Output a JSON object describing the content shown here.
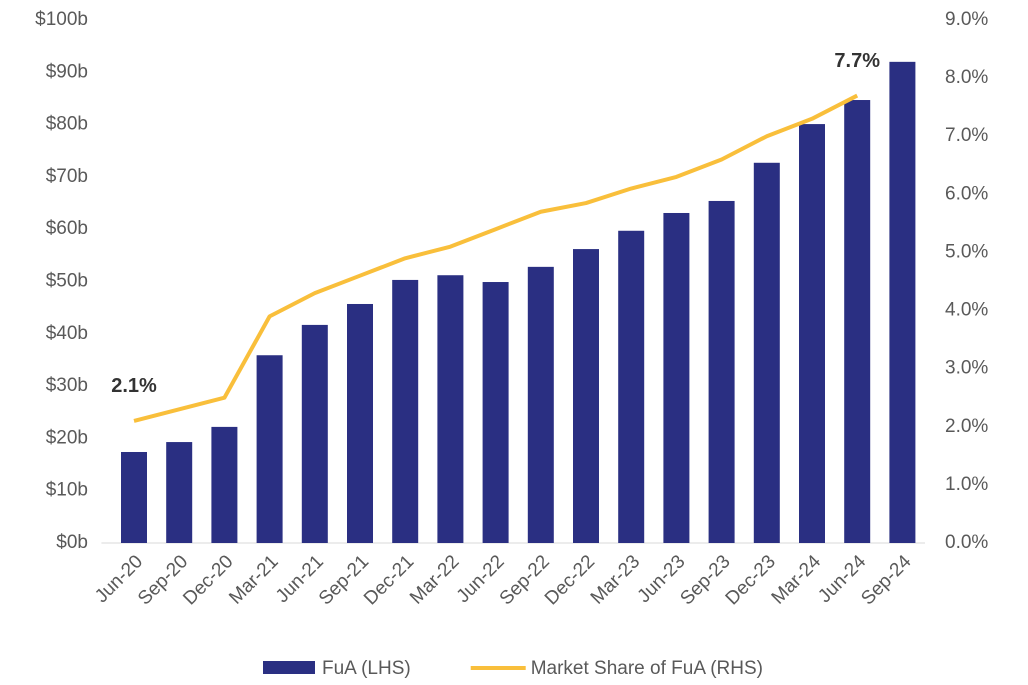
{
  "chart_data": {
    "type": "bar",
    "categories": [
      "Jun-20",
      "Sep-20",
      "Dec-20",
      "Mar-21",
      "Jun-21",
      "Sep-21",
      "Dec-21",
      "Mar-22",
      "Jun-22",
      "Sep-22",
      "Dec-22",
      "Mar-23",
      "Jun-23",
      "Sep-23",
      "Dec-23",
      "Mar-24",
      "Jun-24",
      "Sep-24"
    ],
    "series": [
      {
        "name": "FuA (LHS)",
        "type": "bar",
        "color": "#2a2f82",
        "values": [
          17.4,
          19.3,
          22.2,
          35.9,
          41.7,
          45.7,
          50.3,
          51.2,
          49.9,
          52.8,
          56.2,
          59.7,
          63.1,
          65.4,
          72.7,
          80.1,
          84.7,
          92.0
        ]
      },
      {
        "name": "Market Share of FuA (RHS)",
        "type": "line",
        "axis": "y2",
        "color": "#f9bf3b",
        "values": [
          2.1,
          2.3,
          2.5,
          3.9,
          4.3,
          4.6,
          4.9,
          5.1,
          5.4,
          5.7,
          5.85,
          6.1,
          6.3,
          6.6,
          7.0,
          7.3,
          7.7,
          null
        ],
        "value_labels": [
          "2.1%",
          null,
          null,
          null,
          null,
          null,
          null,
          null,
          null,
          null,
          null,
          null,
          null,
          null,
          null,
          null,
          "7.7%",
          null
        ]
      }
    ],
    "ylim": [
      0,
      100
    ],
    "yticks": [
      {
        "value": 0,
        "label": "$0b"
      },
      {
        "value": 10,
        "label": "$10b"
      },
      {
        "value": 20,
        "label": "$20b"
      },
      {
        "value": 30,
        "label": "$30b"
      },
      {
        "value": 40,
        "label": "$40b"
      },
      {
        "value": 50,
        "label": "$50b"
      },
      {
        "value": 60,
        "label": "$60b"
      },
      {
        "value": 70,
        "label": "$70b"
      },
      {
        "value": 80,
        "label": "$80b"
      },
      {
        "value": 90,
        "label": "$90b"
      },
      {
        "value": 100,
        "label": "$100b"
      }
    ],
    "y2lim": [
      0,
      9
    ],
    "y2ticks": [
      {
        "value": 0,
        "label": "0.0%"
      },
      {
        "value": 1,
        "label": "1.0%"
      },
      {
        "value": 2,
        "label": "2.0%"
      },
      {
        "value": 3,
        "label": "3.0%"
      },
      {
        "value": 4,
        "label": "4.0%"
      },
      {
        "value": 5,
        "label": "5.0%"
      },
      {
        "value": 6,
        "label": "6.0%"
      },
      {
        "value": 7,
        "label": "7.0%"
      },
      {
        "value": 8,
        "label": "8.0%"
      },
      {
        "value": 9,
        "label": "9.0%"
      }
    ],
    "grid": false,
    "legend": "bottom"
  }
}
